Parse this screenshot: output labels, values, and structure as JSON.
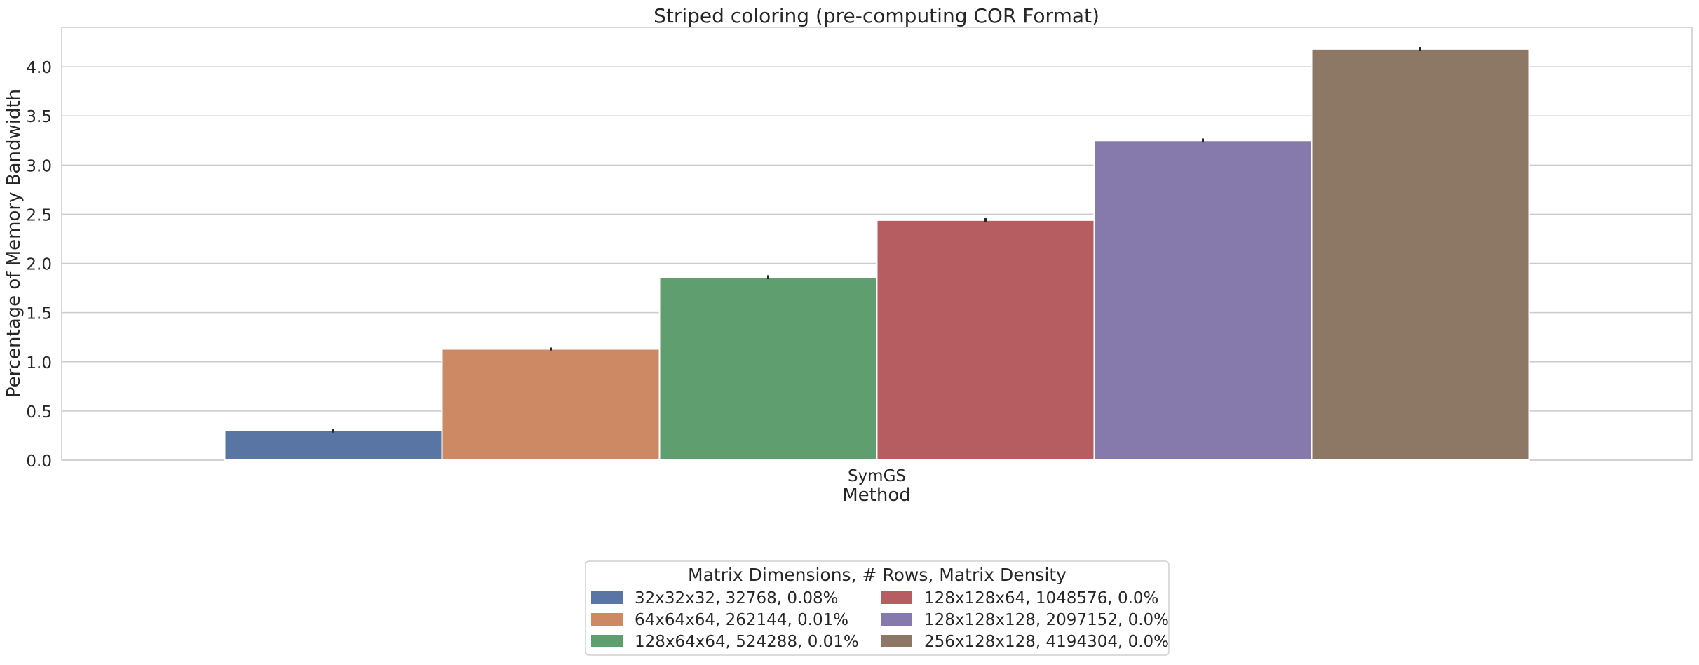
{
  "chart_data": {
    "type": "bar",
    "title": "Striped coloring (pre-computing COR Format)",
    "xlabel": "Method",
    "ylabel": "Percentage of Memory Bandwidth",
    "categories": [
      "SymGS"
    ],
    "ylim": [
      0,
      4.4
    ],
    "yticks": [
      0.0,
      0.5,
      1.0,
      1.5,
      2.0,
      2.5,
      3.0,
      3.5,
      4.0
    ],
    "grid": "horizontal",
    "legend": {
      "title": "Matrix Dimensions, # Rows, Matrix Density",
      "placement": "bottom-center",
      "columns": 2
    },
    "series": [
      {
        "name": "32x32x32, 32768, 0.08%",
        "values": [
          0.3
        ],
        "error": [
          0.02
        ],
        "color": "#5875a4"
      },
      {
        "name": "64x64x64, 262144, 0.01%",
        "values": [
          1.13
        ],
        "error": [
          0.015
        ],
        "color": "#cc8963"
      },
      {
        "name": "128x64x64, 524288, 0.01%",
        "values": [
          1.86
        ],
        "error": [
          0.02
        ],
        "color": "#5f9e6e"
      },
      {
        "name": "128x128x64, 1048576, 0.0%",
        "values": [
          2.44
        ],
        "error": [
          0.02
        ],
        "color": "#b55d60"
      },
      {
        "name": "128x128x128, 2097152, 0.0%",
        "values": [
          3.25
        ],
        "error": [
          0.02
        ],
        "color": "#857aab"
      },
      {
        "name": "256x128x128, 4194304, 0.0%",
        "values": [
          4.18
        ],
        "error": [
          0.02
        ],
        "color": "#8d7866"
      }
    ]
  }
}
